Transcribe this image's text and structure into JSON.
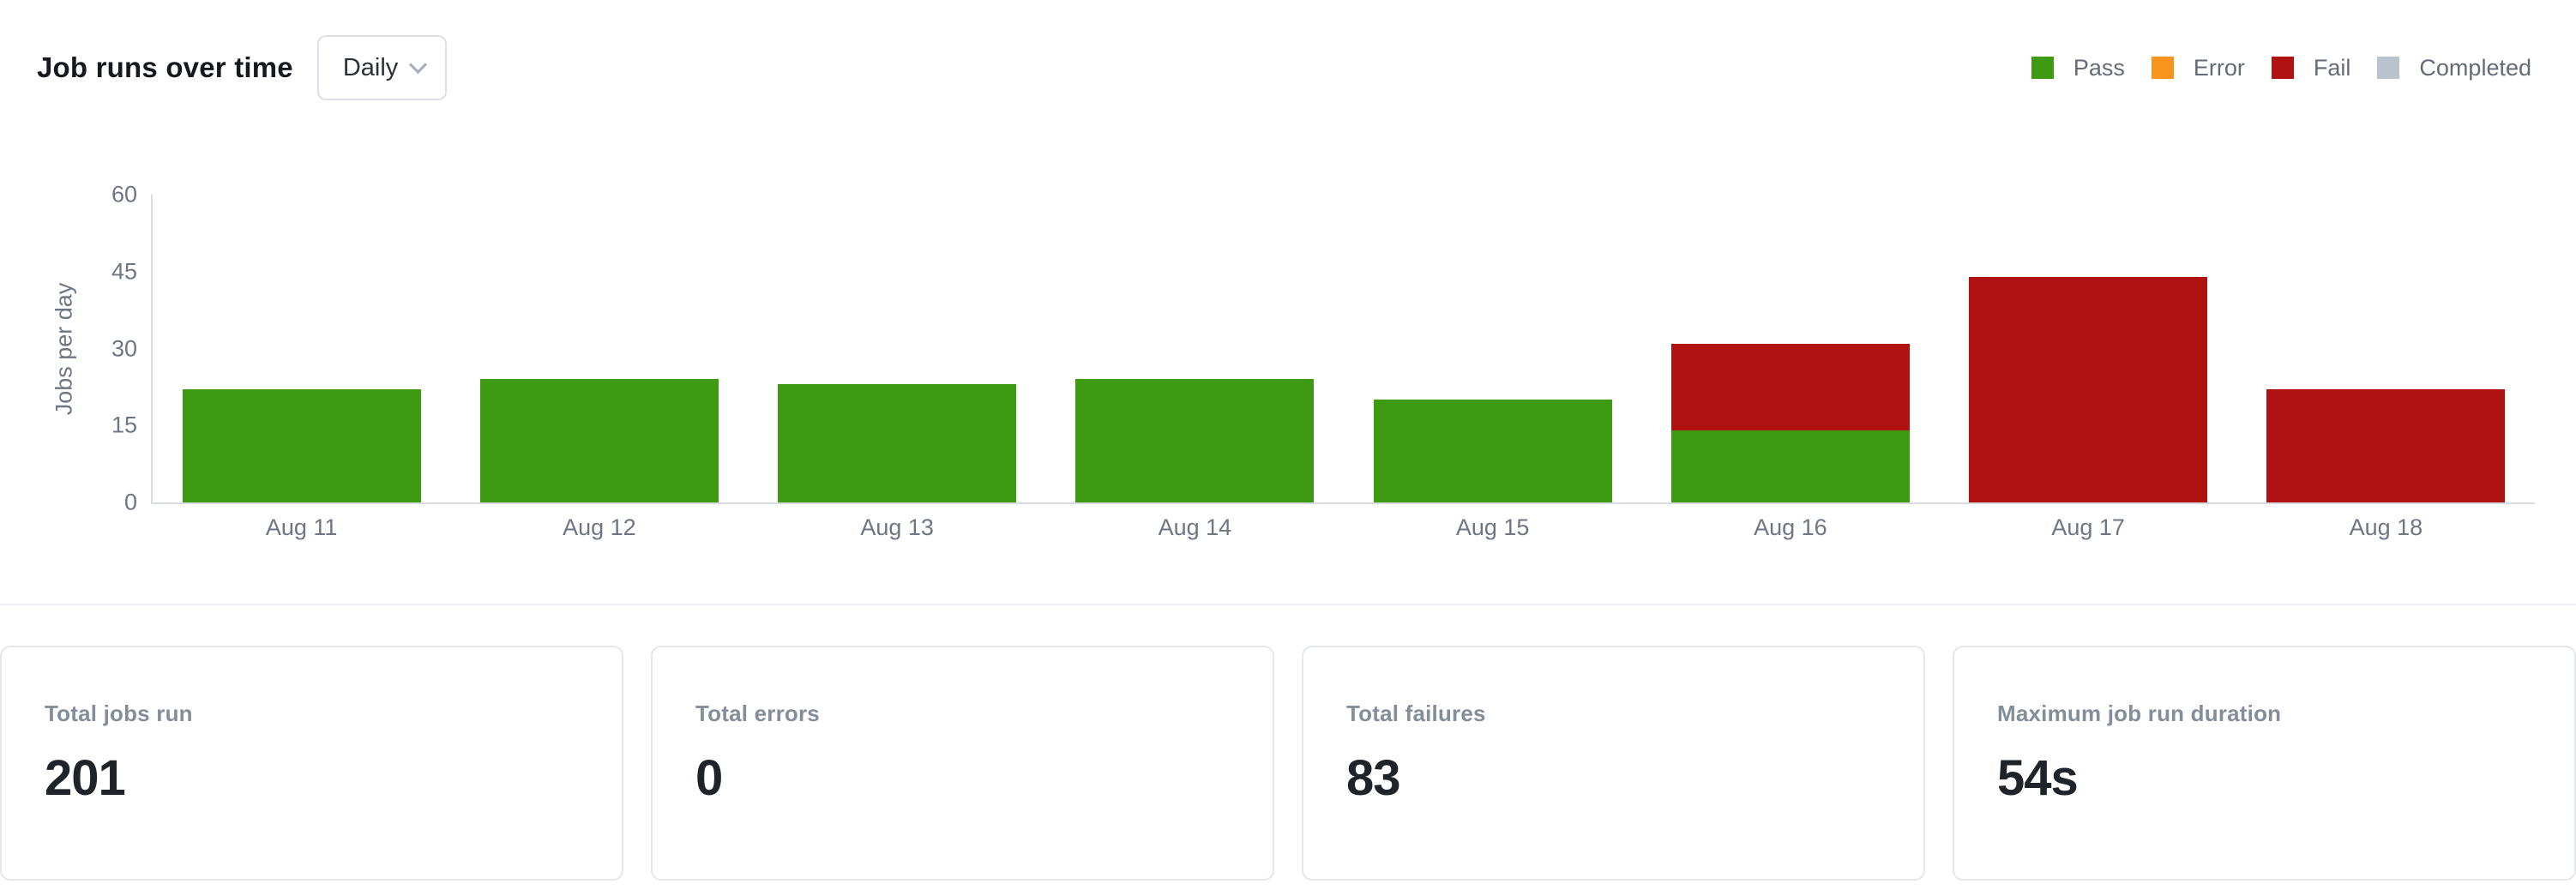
{
  "header": {
    "title": "Job runs over time",
    "interval_select": {
      "value": "Daily"
    },
    "legend": [
      {
        "label": "Pass",
        "color": "#3e9a10"
      },
      {
        "label": "Error",
        "color": "#f8931d"
      },
      {
        "label": "Fail",
        "color": "#b01212"
      },
      {
        "label": "Completed",
        "color": "#b9c2cd"
      }
    ]
  },
  "chart_data": {
    "type": "bar",
    "stacked": true,
    "title": "Job runs over time",
    "categories": [
      "Aug 11",
      "Aug 12",
      "Aug 13",
      "Aug 14",
      "Aug 15",
      "Aug 16",
      "Aug 17",
      "Aug 18"
    ],
    "series": [
      {
        "name": "Pass",
        "color": "#3e9a10",
        "values": [
          22,
          24,
          23,
          24,
          20,
          14,
          0,
          0
        ]
      },
      {
        "name": "Error",
        "color": "#f8931d",
        "values": [
          0,
          0,
          0,
          0,
          0,
          0,
          0,
          0
        ]
      },
      {
        "name": "Fail",
        "color": "#b01212",
        "values": [
          0,
          0,
          0,
          0,
          0,
          17,
          44,
          22
        ]
      },
      {
        "name": "Completed",
        "color": "#b9c2cd",
        "values": [
          0,
          0,
          0,
          0,
          0,
          0,
          0,
          0
        ]
      }
    ],
    "xlabel": "",
    "ylabel": "Jobs per day",
    "ylim": [
      0,
      60
    ],
    "yticks": [
      0,
      15,
      30,
      45,
      60
    ],
    "grid": false,
    "legend_position": "top-right"
  },
  "stats": [
    {
      "label": "Total jobs run",
      "value": "201"
    },
    {
      "label": "Total errors",
      "value": "0"
    },
    {
      "label": "Total failures",
      "value": "83"
    },
    {
      "label": "Maximum job run duration",
      "value": "54s"
    }
  ]
}
